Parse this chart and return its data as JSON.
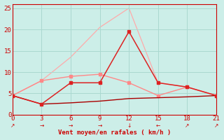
{
  "background_color": "#cceee8",
  "grid_color": "#aad8d0",
  "xlabel": "Vent moyen/en rafales ( km/h )",
  "x_ticks": [
    0,
    3,
    6,
    9,
    12,
    15,
    18,
    21
  ],
  "ylim": [
    0,
    26
  ],
  "xlim": [
    0,
    21
  ],
  "y_ticks": [
    0,
    5,
    10,
    15,
    20,
    25
  ],
  "lines": [
    {
      "x": [
        0,
        3,
        6,
        9,
        12,
        15,
        18,
        21
      ],
      "y": [
        4.5,
        8.0,
        13.5,
        20.5,
        25.0,
        7.5,
        6.5,
        4.5
      ],
      "color": "#ffaaaa",
      "lw": 0.9,
      "marker": null,
      "markersize": 0,
      "zorder": 1
    },
    {
      "x": [
        0,
        3,
        6,
        9,
        12,
        15,
        18,
        21
      ],
      "y": [
        4.5,
        8.0,
        9.0,
        9.5,
        7.5,
        4.5,
        6.5,
        4.5
      ],
      "color": "#ff8888",
      "lw": 1.0,
      "marker": "s",
      "markersize": 2.5,
      "zorder": 2
    },
    {
      "x": [
        0,
        3,
        6,
        9,
        12,
        15,
        18,
        21
      ],
      "y": [
        4.5,
        2.5,
        7.5,
        7.5,
        19.5,
        7.5,
        6.5,
        4.5
      ],
      "color": "#dd2222",
      "lw": 1.1,
      "marker": "s",
      "markersize": 2.5,
      "zorder": 3
    },
    {
      "x": [
        0,
        3,
        6,
        9,
        12,
        15,
        18,
        21
      ],
      "y": [
        4.5,
        2.5,
        2.8,
        3.2,
        3.8,
        4.0,
        4.2,
        4.5
      ],
      "color": "#aa0000",
      "lw": 1.0,
      "marker": null,
      "markersize": 0,
      "zorder": 2
    }
  ],
  "wind_arrows": {
    "x": [
      0,
      3,
      6,
      9,
      12,
      15,
      18,
      21
    ],
    "symbols": [
      "↗",
      "→",
      "→",
      "→",
      "↓",
      "←",
      "↗",
      "↗"
    ],
    "color": "#cc0000",
    "fontsize": 5.5
  }
}
